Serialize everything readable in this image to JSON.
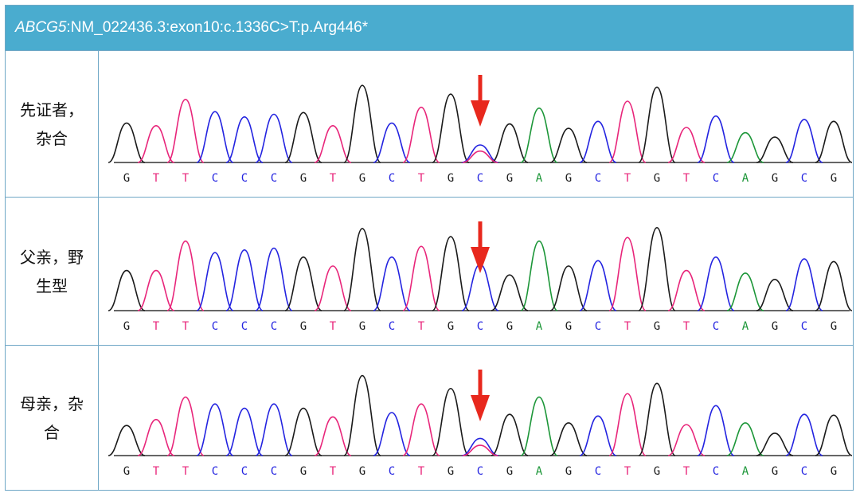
{
  "header": {
    "gene": "ABCG5",
    "variant": ":NM_022436.3:exon10:c.1336C>T:p.Arg446*"
  },
  "colors": {
    "header_bg": "#4aaccf",
    "border": "#6fa7c6",
    "G": "#1a1a1a",
    "T": "#e8257a",
    "C": "#2323e0",
    "A": "#1c9638",
    "arrow": "#e8281d"
  },
  "base_sequence": [
    "G",
    "T",
    "T",
    "C",
    "C",
    "C",
    "G",
    "T",
    "G",
    "C",
    "T",
    "G",
    "C",
    "G",
    "A",
    "G",
    "C",
    "T",
    "G",
    "T",
    "C",
    "A",
    "G",
    "C",
    "G"
  ],
  "variant_position_index": 12,
  "rows": [
    {
      "label": "先证者，杂合",
      "genotype": "heterozygous",
      "peaks": [
        0.45,
        0.42,
        0.72,
        0.58,
        0.52,
        0.55,
        0.57,
        0.42,
        0.88,
        0.45,
        0.63,
        0.78,
        0.2,
        0.44,
        0.62,
        0.39,
        0.47,
        0.7,
        0.86,
        0.4,
        0.53,
        0.34,
        0.29,
        0.49,
        0.47
      ],
      "secondary_peak": {
        "index": 12,
        "base": "T",
        "height": 0.13
      }
    },
    {
      "label": "父亲，野生型",
      "genotype": "wild-type",
      "peaks": [
        0.45,
        0.45,
        0.78,
        0.65,
        0.68,
        0.7,
        0.6,
        0.5,
        0.92,
        0.6,
        0.72,
        0.83,
        0.52,
        0.4,
        0.78,
        0.5,
        0.56,
        0.82,
        0.93,
        0.45,
        0.6,
        0.42,
        0.35,
        0.58,
        0.55
      ],
      "secondary_peak": null
    },
    {
      "label": "母亲，杂合",
      "genotype": "heterozygous",
      "peaks": [
        0.35,
        0.42,
        0.68,
        0.6,
        0.55,
        0.6,
        0.55,
        0.45,
        0.93,
        0.5,
        0.6,
        0.78,
        0.2,
        0.48,
        0.68,
        0.38,
        0.46,
        0.72,
        0.84,
        0.36,
        0.58,
        0.38,
        0.26,
        0.48,
        0.47
      ],
      "secondary_peak": {
        "index": 12,
        "base": "T",
        "height": 0.12
      }
    }
  ]
}
